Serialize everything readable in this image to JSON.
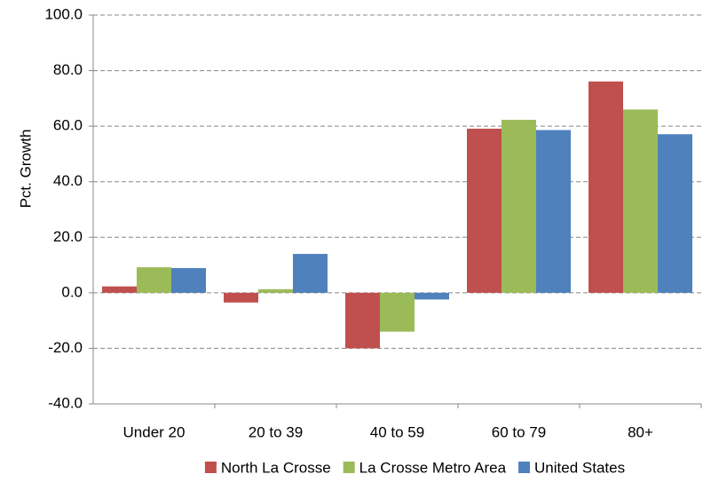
{
  "chart_data": {
    "type": "bar",
    "y_label": "Pct. Growth",
    "categories": [
      "Under 20",
      "20 to 39",
      "40 to 59",
      "60 to 79",
      "80+"
    ],
    "series": [
      {
        "name": "North La Crosse",
        "color": "#c0504d",
        "values": [
          2.3,
          -3.5,
          -20.0,
          59.1,
          76.1
        ]
      },
      {
        "name": "La Crosse Metro Area",
        "color": "#9bbb59",
        "values": [
          9.2,
          1.3,
          -14.0,
          62.3,
          66.0
        ]
      },
      {
        "name": "United States",
        "color": "#4f81bd",
        "values": [
          8.9,
          14.0,
          -2.4,
          58.6,
          57.1
        ]
      }
    ],
    "ylim": [
      -40,
      100
    ],
    "yticks": [
      {
        "value": -40,
        "label": "-40.0"
      },
      {
        "value": -20,
        "label": "-20.0"
      },
      {
        "value": 0,
        "label": "0.0"
      },
      {
        "value": 20,
        "label": "20.0"
      },
      {
        "value": 40,
        "label": "40.0"
      },
      {
        "value": 60,
        "label": "60.0"
      },
      {
        "value": 80,
        "label": "80.0"
      },
      {
        "value": 100,
        "label": "100.0"
      }
    ],
    "grid": true,
    "legend": "bottom"
  }
}
